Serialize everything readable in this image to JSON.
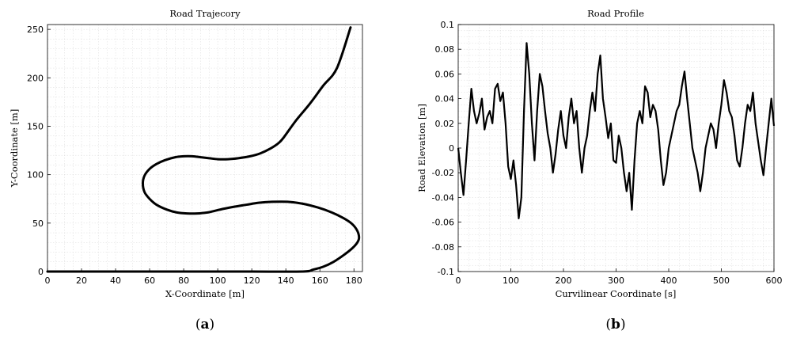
{
  "captions": [
    "(a)",
    "(b)"
  ],
  "chart_data": [
    {
      "type": "line",
      "title": "Road Trajecory",
      "xlabel": "X-Coordinate [m]",
      "ylabel": "Y-Coordinate [m]",
      "xlim": [
        0,
        185
      ],
      "ylim": [
        0,
        255
      ],
      "xticks": [
        0,
        20,
        40,
        60,
        80,
        100,
        120,
        140,
        160,
        180
      ],
      "yticks": [
        0,
        50,
        100,
        150,
        200,
        250
      ],
      "grid": true,
      "color": "#000000",
      "series": [
        {
          "x": [
            0,
            40,
            80,
            120,
            150,
            156,
            162,
            168,
            174,
            179,
            182,
            183,
            182,
            179,
            174,
            167,
            159,
            150,
            141,
            132,
            124,
            117,
            110,
            104,
            99,
            94,
            88,
            82,
            76,
            70,
            64,
            60,
            57,
            56,
            57,
            60,
            64,
            69,
            75,
            80,
            85,
            90,
            95,
            100,
            106,
            112,
            119,
            125,
            131,
            136,
            139,
            146,
            154,
            162,
            170,
            178
          ],
          "y": [
            0,
            0,
            0,
            0,
            0,
            2,
            5,
            10,
            17,
            24,
            30,
            35,
            42,
            49,
            55,
            61,
            66,
            70,
            72,
            72,
            71,
            69,
            67,
            65,
            63,
            61,
            60,
            60,
            61,
            64,
            69,
            75,
            82,
            91,
            99,
            106,
            111,
            115,
            118,
            119,
            119,
            118,
            117,
            116,
            116,
            117,
            119,
            122,
            127,
            133,
            139,
            156,
            173,
            192,
            210,
            252
          ]
        }
      ]
    },
    {
      "type": "line",
      "title": "Road Profile",
      "xlabel": "Curvilinear Coordinate [s]",
      "ylabel": "Road Elevation [m]",
      "xlim": [
        0,
        600
      ],
      "ylim": [
        -0.1,
        0.1
      ],
      "xticks": [
        0,
        100,
        200,
        300,
        400,
        500,
        600
      ],
      "yticks": [
        -0.1,
        -0.08,
        -0.06,
        -0.04,
        -0.02,
        0,
        0.02,
        0.04,
        0.06,
        0.08,
        0.1
      ],
      "grid": true,
      "color": "#000000",
      "series": [
        {
          "x": [
            0,
            5,
            10,
            15,
            20,
            25,
            30,
            35,
            40,
            45,
            50,
            55,
            60,
            65,
            70,
            75,
            80,
            85,
            90,
            95,
            100,
            105,
            110,
            115,
            120,
            125,
            130,
            135,
            140,
            145,
            150,
            155,
            160,
            165,
            170,
            175,
            180,
            185,
            190,
            195,
            200,
            205,
            210,
            215,
            220,
            225,
            230,
            235,
            240,
            245,
            250,
            255,
            260,
            265,
            270,
            275,
            280,
            285,
            290,
            295,
            300,
            305,
            310,
            315,
            320,
            325,
            330,
            335,
            340,
            345,
            350,
            355,
            360,
            365,
            370,
            375,
            380,
            385,
            390,
            395,
            400,
            405,
            410,
            415,
            420,
            425,
            430,
            435,
            440,
            445,
            450,
            455,
            460,
            465,
            470,
            475,
            480,
            485,
            490,
            495,
            500,
            505,
            510,
            515,
            520,
            525,
            530,
            535,
            540,
            545,
            550,
            555,
            560,
            565,
            570,
            575,
            580,
            585,
            590,
            595,
            600
          ],
          "y": [
            0,
            -0.02,
            -0.038,
            -0.01,
            0.02,
            0.048,
            0.03,
            0.02,
            0.028,
            0.04,
            0.015,
            0.025,
            0.03,
            0.02,
            0.048,
            0.052,
            0.038,
            0.045,
            0.02,
            -0.015,
            -0.025,
            -0.01,
            -0.03,
            -0.057,
            -0.04,
            0.03,
            0.085,
            0.06,
            0.02,
            -0.01,
            0.03,
            0.06,
            0.05,
            0.03,
            0.012,
            0.0,
            -0.02,
            -0.005,
            0.015,
            0.03,
            0.01,
            0.0,
            0.025,
            0.04,
            0.02,
            0.03,
            0.0,
            -0.02,
            0.0,
            0.01,
            0.03,
            0.045,
            0.03,
            0.06,
            0.075,
            0.04,
            0.025,
            0.008,
            0.02,
            -0.01,
            -0.012,
            0.01,
            0.0,
            -0.02,
            -0.035,
            -0.02,
            -0.05,
            -0.01,
            0.02,
            0.03,
            0.02,
            0.05,
            0.045,
            0.025,
            0.035,
            0.03,
            0.015,
            -0.01,
            -0.03,
            -0.02,
            0.0,
            0.01,
            0.02,
            0.03,
            0.035,
            0.05,
            0.062,
            0.04,
            0.02,
            0.0,
            -0.01,
            -0.02,
            -0.035,
            -0.02,
            0.0,
            0.01,
            0.02,
            0.015,
            0.0,
            0.02,
            0.035,
            0.055,
            0.045,
            0.03,
            0.025,
            0.01,
            -0.01,
            -0.015,
            0.0,
            0.02,
            0.035,
            0.03,
            0.045,
            0.02,
            0.005,
            -0.01,
            -0.022,
            0.0,
            0.02,
            0.04,
            0.018
          ]
        }
      ]
    }
  ]
}
